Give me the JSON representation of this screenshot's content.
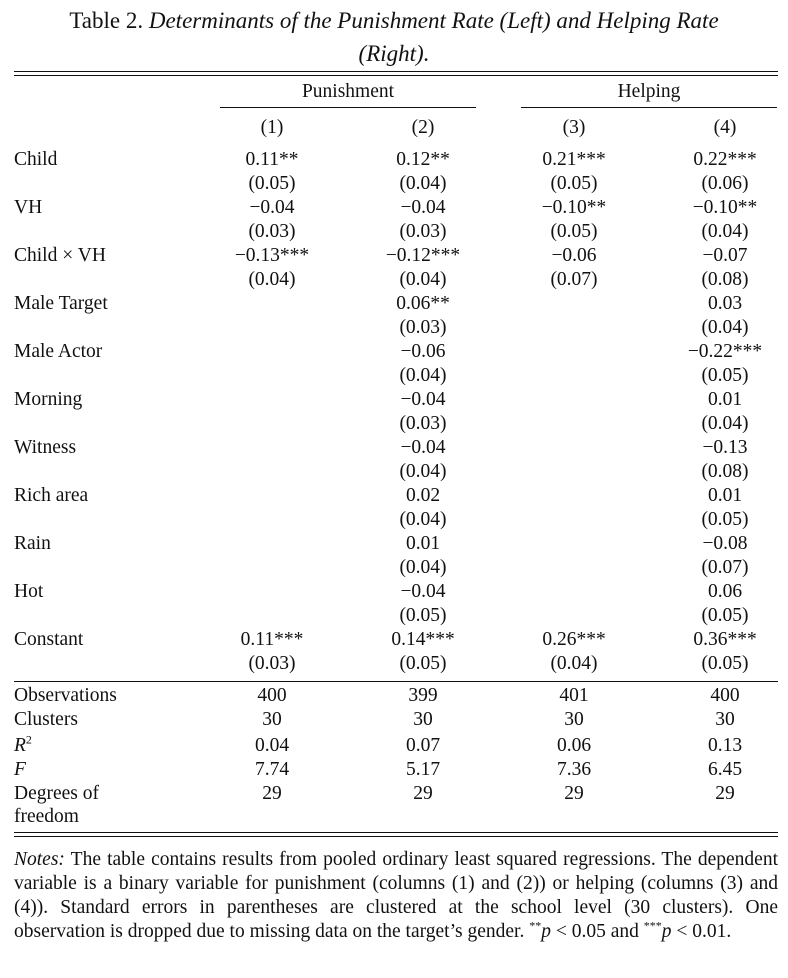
{
  "title": {
    "prefix": "Table 2.",
    "line1": "Determinants of the Punishment Rate (Left) and Helping Rate",
    "line2": "(Right)."
  },
  "groups": [
    "Punishment",
    "Helping"
  ],
  "columns": [
    "(1)",
    "(2)",
    "(3)",
    "(4)"
  ],
  "rows": [
    {
      "label": "Child",
      "vals": [
        [
          "0.11**",
          "(0.05)"
        ],
        [
          "0.12**",
          "(0.04)"
        ],
        [
          "0.21***",
          "(0.05)"
        ],
        [
          "0.22***",
          "(0.06)"
        ]
      ]
    },
    {
      "label": "VH",
      "vals": [
        [
          "−0.04",
          "(0.03)"
        ],
        [
          "−0.04",
          "(0.03)"
        ],
        [
          "−0.10**",
          "(0.05)"
        ],
        [
          "−0.10**",
          "(0.04)"
        ]
      ]
    },
    {
      "label": "Child × VH",
      "vals": [
        [
          "−0.13***",
          "(0.04)"
        ],
        [
          "−0.12***",
          "(0.04)"
        ],
        [
          "−0.06",
          "(0.07)"
        ],
        [
          "−0.07",
          "(0.08)"
        ]
      ]
    },
    {
      "label": "Male Target",
      "vals": [
        [
          "",
          ""
        ],
        [
          "0.06**",
          "(0.03)"
        ],
        [
          "",
          ""
        ],
        [
          "0.03",
          "(0.04)"
        ]
      ]
    },
    {
      "label": "Male Actor",
      "vals": [
        [
          "",
          ""
        ],
        [
          "−0.06",
          "(0.04)"
        ],
        [
          "",
          ""
        ],
        [
          "−0.22***",
          "(0.05)"
        ]
      ]
    },
    {
      "label": "Morning",
      "vals": [
        [
          "",
          ""
        ],
        [
          "−0.04",
          "(0.03)"
        ],
        [
          "",
          ""
        ],
        [
          "0.01",
          "(0.04)"
        ]
      ]
    },
    {
      "label": "Witness",
      "vals": [
        [
          "",
          ""
        ],
        [
          "−0.04",
          "(0.04)"
        ],
        [
          "",
          ""
        ],
        [
          "−0.13",
          "(0.08)"
        ]
      ]
    },
    {
      "label": "Rich area",
      "vals": [
        [
          "",
          ""
        ],
        [
          "0.02",
          "(0.04)"
        ],
        [
          "",
          ""
        ],
        [
          "0.01",
          "(0.05)"
        ]
      ]
    },
    {
      "label": "Rain",
      "vals": [
        [
          "",
          ""
        ],
        [
          "0.01",
          "(0.04)"
        ],
        [
          "",
          ""
        ],
        [
          "−0.08",
          "(0.07)"
        ]
      ]
    },
    {
      "label": "Hot",
      "vals": [
        [
          "",
          ""
        ],
        [
          "−0.04",
          "(0.05)"
        ],
        [
          "",
          ""
        ],
        [
          "0.06",
          "(0.05)"
        ]
      ]
    },
    {
      "label": "Constant",
      "vals": [
        [
          "0.11***",
          "(0.03)"
        ],
        [
          "0.14***",
          "(0.05)"
        ],
        [
          "0.26***",
          "(0.04)"
        ],
        [
          "0.36***",
          "(0.05)"
        ]
      ]
    }
  ],
  "stats": [
    {
      "label": "Observations",
      "vals": [
        "400",
        "399",
        "401",
        "400"
      ]
    },
    {
      "label": "Clusters",
      "vals": [
        "30",
        "30",
        "30",
        "30"
      ]
    },
    {
      "label": "R2",
      "vals": [
        "0.04",
        "0.07",
        "0.06",
        "0.13"
      ]
    },
    {
      "label": "F",
      "vals": [
        "7.74",
        "5.17",
        "7.36",
        "6.45"
      ]
    },
    {
      "label": "Degrees of freedom",
      "label_line1": "Degrees of",
      "label_line2": "freedom",
      "vals": [
        "29",
        "29",
        "29",
        "29"
      ]
    }
  ],
  "notes": {
    "lead": "Notes:",
    "body": "The table contains results from pooled ordinary least squared regressions. The dependent variable is a binary variable for punishment (columns (1) and (2)) or helping (columns (3) and (4)). Standard errors in parentheses are clustered at the school level (30 clusters). One observation is dropped due to missing data on the target’s gender.",
    "sig_mark1": "**",
    "sig_p1": "p",
    "sig_rest1": " < 0.05 and ",
    "sig_mark2": "***",
    "sig_p2": "p",
    "sig_rest2": " < 0.01."
  }
}
